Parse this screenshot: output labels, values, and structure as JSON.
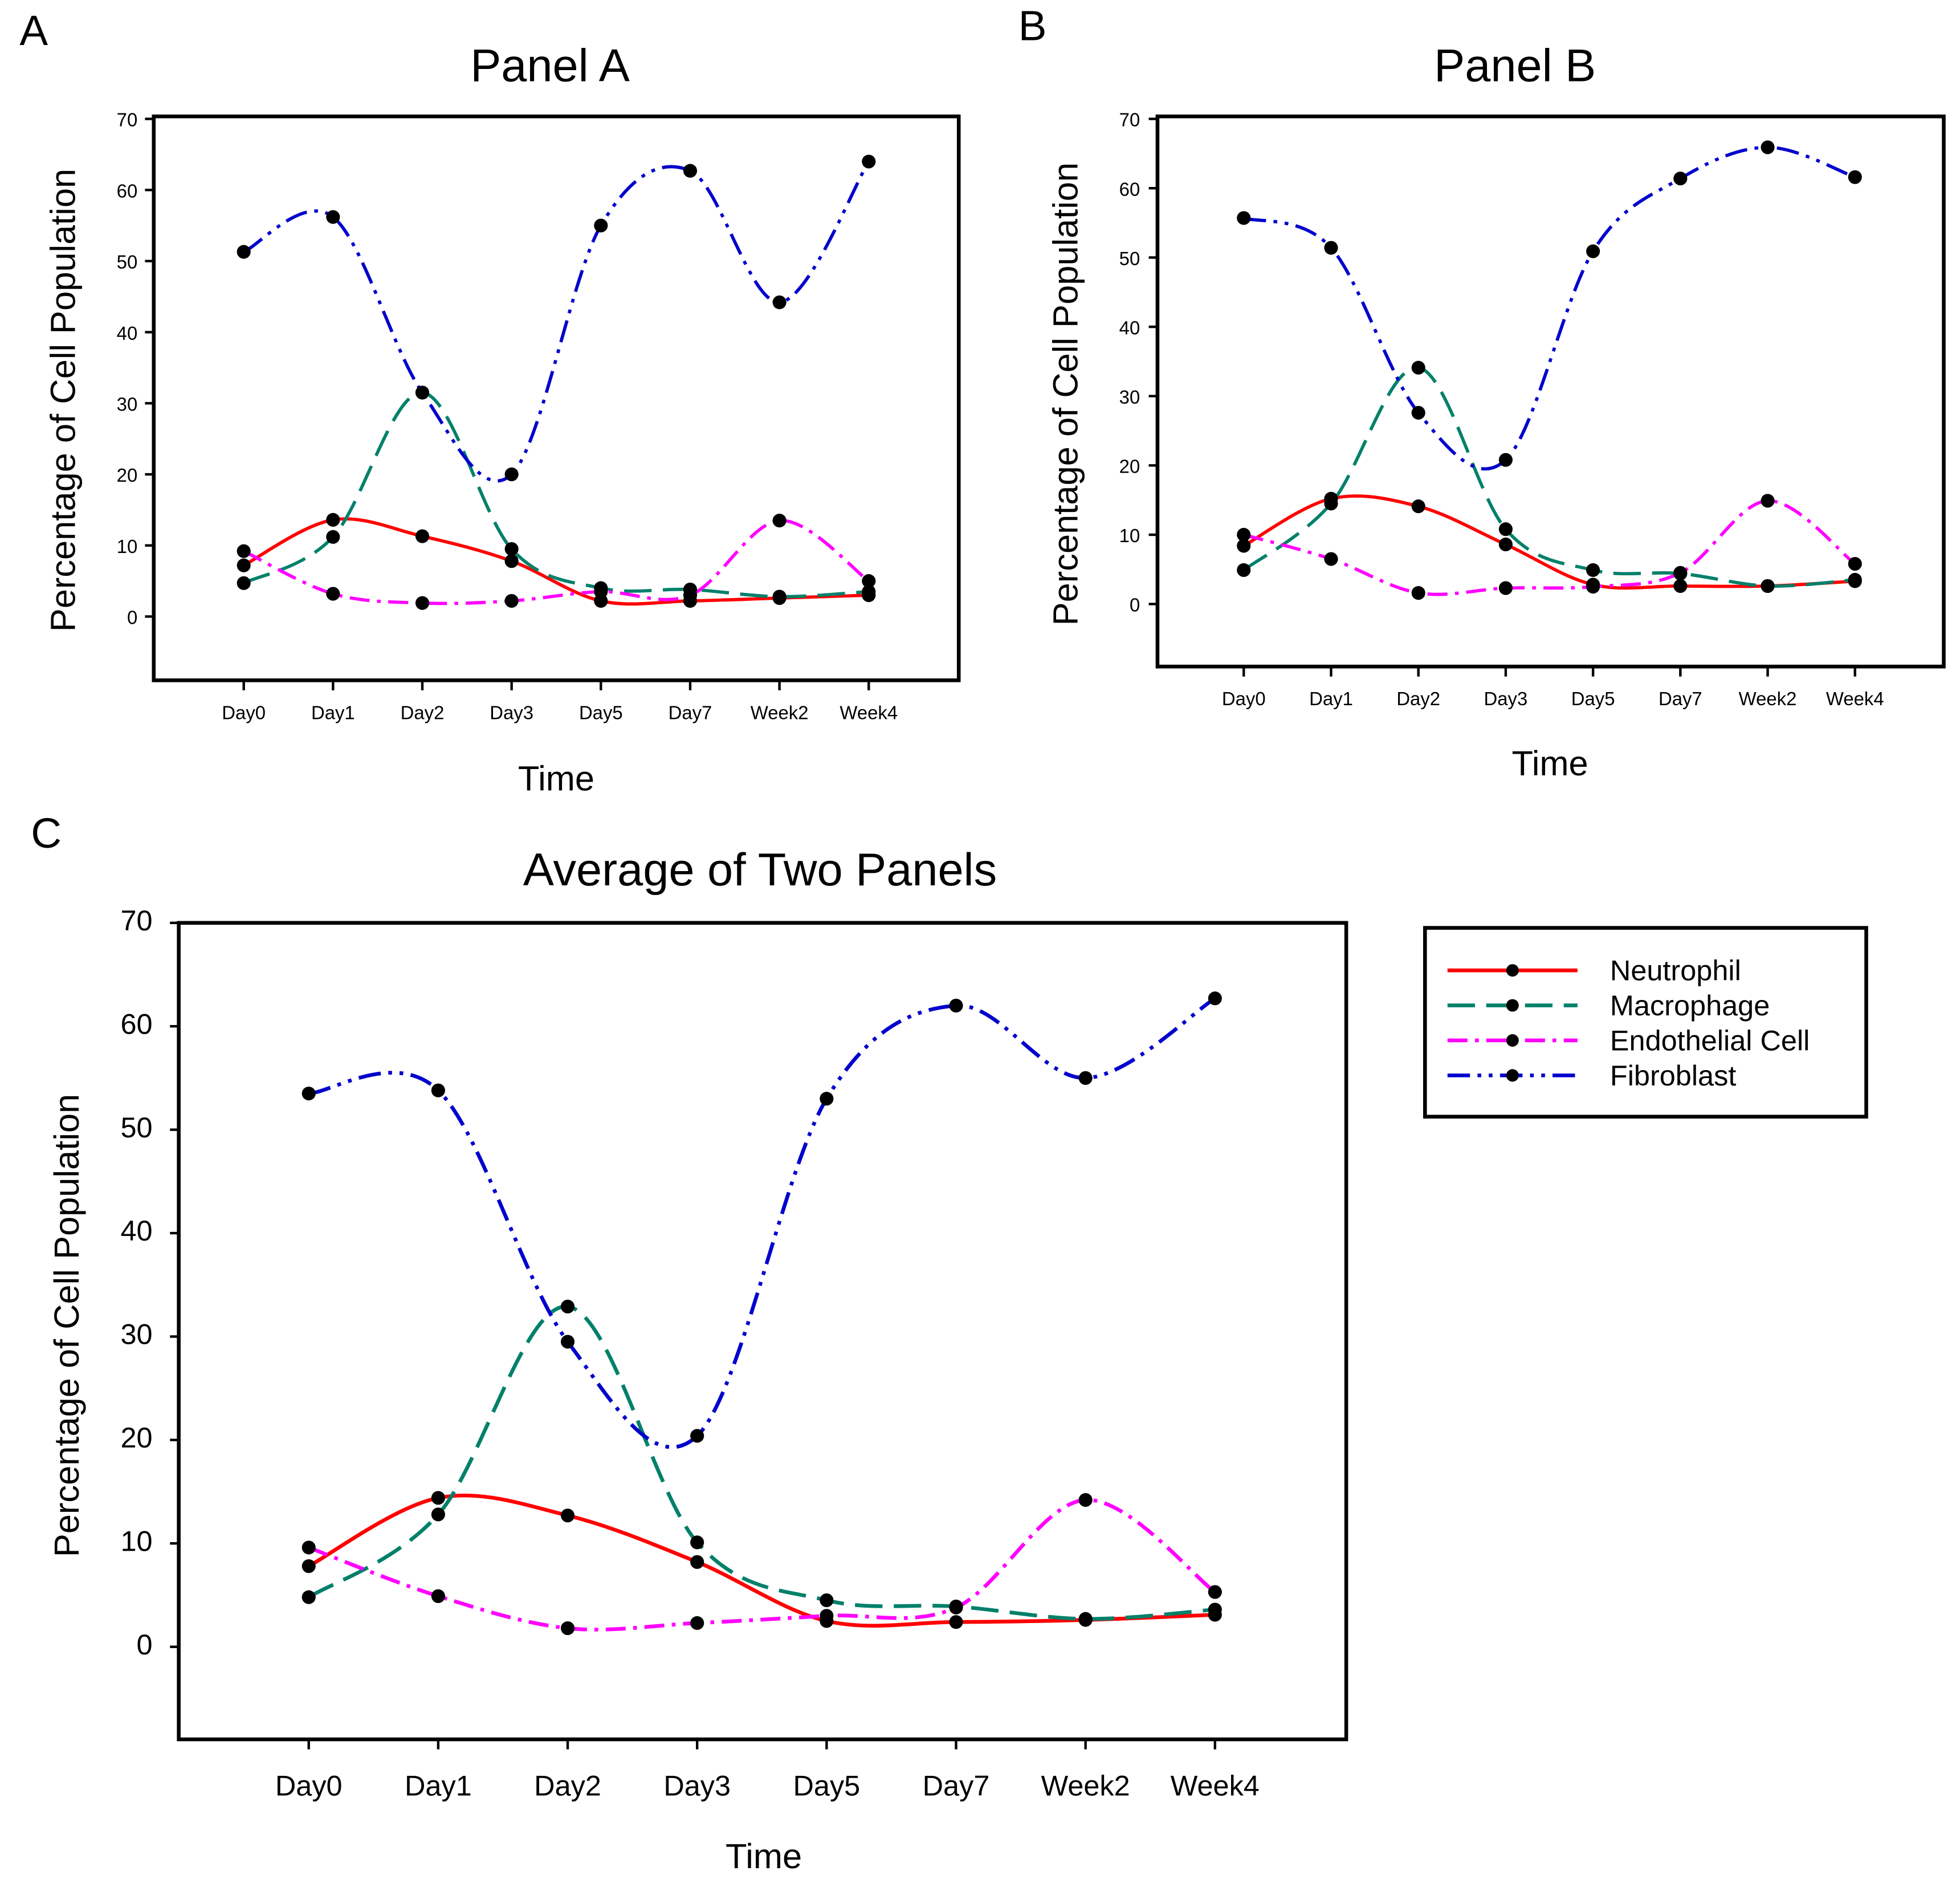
{
  "colors": {
    "Neutrophil": "#ff0000",
    "Macrophage": "#00806a",
    "Endothelial Cell": "#ff00ff",
    "Fibroblast": "#0000cc"
  },
  "legend": {
    "entries": [
      "Neutrophil",
      "Macrophage",
      "Endothelial Cell",
      "Fibroblast"
    ]
  },
  "chart_data": [
    {
      "panel_letter": "A",
      "type": "line",
      "title": "Panel A",
      "xlabel": "Time",
      "ylabel": "Percentage of Cell Population",
      "ylim": [
        -9,
        70
      ],
      "yticks": [
        0,
        10,
        20,
        30,
        40,
        50,
        60,
        70
      ],
      "categories": [
        "Day0",
        "Day1",
        "Day2",
        "Day3",
        "Day5",
        "Day7",
        "Week2",
        "Week4"
      ],
      "series": [
        {
          "name": "Neutrophil",
          "values": [
            7.2,
            13.6,
            11.3,
            7.8,
            2.2,
            2.2,
            2.6,
            3.0
          ]
        },
        {
          "name": "Macrophage",
          "values": [
            4.7,
            11.2,
            31.5,
            9.5,
            4.0,
            3.8,
            2.8,
            3.5
          ]
        },
        {
          "name": "Endothelial Cell",
          "values": [
            9.2,
            3.2,
            1.9,
            2.2,
            3.5,
            3.0,
            13.5,
            5.0
          ]
        },
        {
          "name": "Fibroblast",
          "values": [
            51.3,
            56.2,
            31.5,
            20.0,
            55.0,
            62.7,
            44.2,
            64.0
          ]
        }
      ]
    },
    {
      "panel_letter": "B",
      "type": "line",
      "title": "Panel B",
      "xlabel": "Time",
      "ylabel": "Percentage of Cell Population",
      "ylim": [
        -9,
        70
      ],
      "yticks": [
        0,
        10,
        20,
        30,
        40,
        50,
        60,
        70
      ],
      "categories": [
        "Day0",
        "Day1",
        "Day2",
        "Day3",
        "Day5",
        "Day7",
        "Week2",
        "Week4"
      ],
      "series": [
        {
          "name": "Neutrophil",
          "values": [
            8.4,
            15.2,
            14.1,
            8.6,
            2.8,
            2.6,
            2.6,
            3.3
          ]
        },
        {
          "name": "Macrophage",
          "values": [
            4.9,
            14.5,
            34.1,
            10.8,
            4.9,
            4.4,
            2.6,
            3.5
          ]
        },
        {
          "name": "Endothelial Cell",
          "values": [
            10.0,
            6.5,
            1.6,
            2.3,
            2.5,
            4.5,
            14.9,
            5.8
          ]
        },
        {
          "name": "Fibroblast",
          "values": [
            55.7,
            51.4,
            27.6,
            20.8,
            50.9,
            61.4,
            65.9,
            61.6
          ]
        }
      ]
    },
    {
      "panel_letter": "C",
      "type": "line",
      "title": "Average of Two Panels",
      "xlabel": "Time",
      "ylabel": "Percentage of Cell Population",
      "ylim": [
        -9,
        70
      ],
      "yticks": [
        0,
        10,
        20,
        30,
        40,
        50,
        60,
        70
      ],
      "categories": [
        "Day0",
        "Day1",
        "Day2",
        "Day3",
        "Day5",
        "Day7",
        "Week2",
        "Week4"
      ],
      "legend_position": "right",
      "series": [
        {
          "name": "Neutrophil",
          "values": [
            7.8,
            14.4,
            12.7,
            8.2,
            2.5,
            2.4,
            2.6,
            3.1
          ]
        },
        {
          "name": "Macrophage",
          "values": [
            4.8,
            12.8,
            32.9,
            10.1,
            4.5,
            3.9,
            2.7,
            3.6
          ]
        },
        {
          "name": "Endothelial Cell",
          "values": [
            9.6,
            4.9,
            1.8,
            2.3,
            3.0,
            3.8,
            14.2,
            5.3
          ]
        },
        {
          "name": "Fibroblast",
          "values": [
            53.5,
            53.8,
            29.5,
            20.4,
            53.0,
            62.0,
            55.0,
            62.7
          ]
        }
      ]
    }
  ]
}
